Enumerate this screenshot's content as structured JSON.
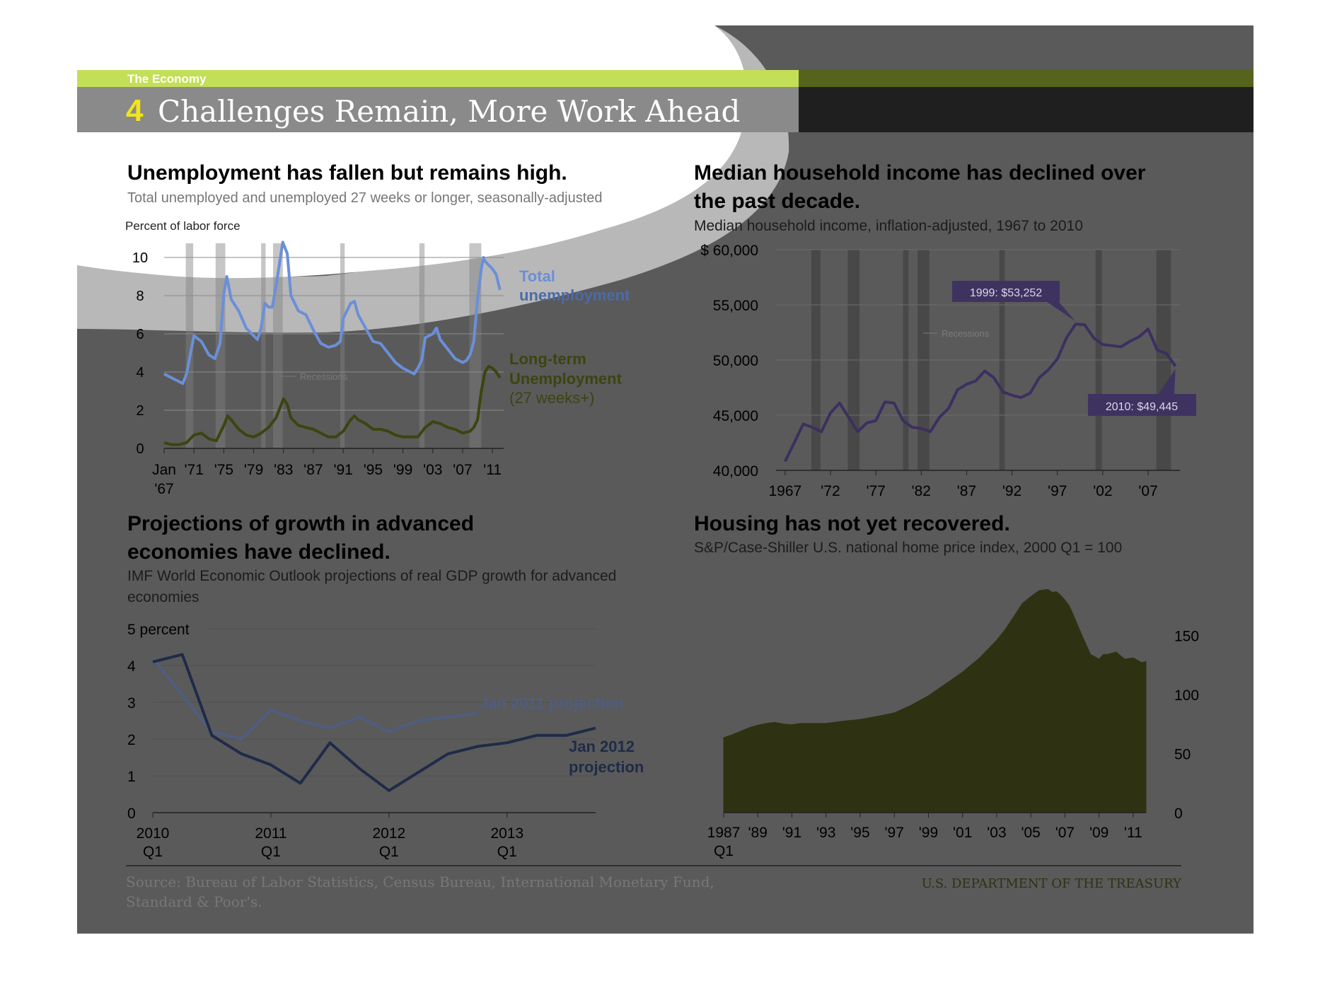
{
  "header": {
    "section_label": "The Economy",
    "number": "4",
    "title": "Challenges Remain, More Work Ahead"
  },
  "footer": {
    "source_line1": "Source: Bureau of Labor Statistics, Census Bureau, International Monetary Fund,",
    "source_line2": "Standard & Poor's.",
    "agency": "U.S. DEPARTMENT OF THE TREASURY"
  },
  "colors": {
    "green_band": "#c3df57",
    "dark_background": "#5a5a5a",
    "title_bar_dark": "#1f1f1f",
    "total_unemployment": "#6b8fd8",
    "long_term_unemployment": "#3b4510",
    "income_line": "#3c2f60",
    "callout_box": "#3e3360",
    "housing_fill": "#2e3213",
    "jan2011_line": "#4f5d80",
    "jan2012_line": "#1f2b48"
  },
  "chart_data": [
    {
      "id": "unemployment",
      "type": "line",
      "title": "Unemployment has fallen but remains high.",
      "subtitle": "Total unemployed and unemployed 27 weeks or longer, seasonally-adjusted",
      "ylabel": "Percent of labor force",
      "ylim": [
        0,
        10
      ],
      "yticks": [
        "0",
        "2",
        "4",
        "6",
        "8",
        "10"
      ],
      "xlim": [
        1967,
        2012.5
      ],
      "xticks": [
        {
          "x": 1967,
          "label": "Jan",
          "label2": "'67"
        },
        {
          "x": 1971,
          "label": "'71"
        },
        {
          "x": 1975,
          "label": "'75"
        },
        {
          "x": 1979,
          "label": "'79"
        },
        {
          "x": 1983,
          "label": "'83"
        },
        {
          "x": 1987,
          "label": "'87"
        },
        {
          "x": 1991,
          "label": "'91"
        },
        {
          "x": 1995,
          "label": "'95"
        },
        {
          "x": 1999,
          "label": "'99"
        },
        {
          "x": 2003,
          "label": "'03"
        },
        {
          "x": 2007,
          "label": "'07"
        },
        {
          "x": 2011,
          "label": "'11"
        }
      ],
      "recession_label": "Recessions",
      "recessions": [
        [
          1969.9,
          1970.9
        ],
        [
          1973.9,
          1975.2
        ],
        [
          1980.0,
          1980.6
        ],
        [
          1981.6,
          1982.9
        ],
        [
          1990.6,
          1991.2
        ],
        [
          2001.2,
          2001.9
        ],
        [
          2007.9,
          2009.5
        ]
      ],
      "grid": true,
      "series": [
        {
          "name": "Total unemployment",
          "label_lines": [
            "Total",
            "unemployment"
          ],
          "x": [
            1967.0,
            1968.0,
            1969.0,
            1969.5,
            1970.0,
            1970.5,
            1971.0,
            1972.0,
            1973.0,
            1973.8,
            1974.5,
            1975.0,
            1975.4,
            1976.0,
            1977.0,
            1978.0,
            1979.0,
            1979.5,
            1980.0,
            1980.5,
            1981.0,
            1981.5,
            1982.0,
            1982.9,
            1983.5,
            1984.0,
            1985.0,
            1986.0,
            1987.0,
            1988.0,
            1989.0,
            1990.0,
            1990.6,
            1991.0,
            1992.0,
            1992.5,
            1993.0,
            1994.0,
            1995.0,
            1996.0,
            1997.0,
            1998.0,
            1999.0,
            2000.0,
            2000.5,
            2001.0,
            2001.5,
            2002.0,
            2003.0,
            2003.5,
            2004.0,
            2005.0,
            2006.0,
            2007.0,
            2007.5,
            2008.0,
            2008.5,
            2009.0,
            2009.5,
            2009.8,
            2010.0,
            2010.5,
            2011.0,
            2011.5,
            2012.0
          ],
          "y": [
            3.9,
            3.7,
            3.5,
            3.4,
            3.9,
            4.9,
            5.9,
            5.6,
            4.9,
            4.7,
            5.5,
            8.1,
            9.0,
            7.8,
            7.2,
            6.3,
            5.9,
            5.7,
            6.3,
            7.6,
            7.4,
            7.4,
            8.5,
            10.8,
            10.2,
            8.0,
            7.2,
            7.0,
            6.2,
            5.5,
            5.3,
            5.4,
            5.6,
            6.8,
            7.6,
            7.7,
            7.0,
            6.3,
            5.6,
            5.5,
            5.0,
            4.5,
            4.2,
            4.0,
            3.9,
            4.2,
            4.6,
            5.8,
            6.0,
            6.3,
            5.7,
            5.2,
            4.7,
            4.5,
            4.6,
            4.9,
            5.6,
            7.8,
            9.4,
            10.0,
            9.8,
            9.6,
            9.4,
            9.1,
            8.3
          ]
        },
        {
          "name": "Long-term Unemployment",
          "label_lines": [
            "Long-term",
            "Unemployment",
            "(27 weeks+)"
          ],
          "x": [
            1967.0,
            1968.0,
            1969.0,
            1970.0,
            1971.0,
            1972.0,
            1973.0,
            1974.0,
            1975.0,
            1975.5,
            1976.0,
            1977.0,
            1978.0,
            1979.0,
            1980.0,
            1981.0,
            1982.0,
            1983.0,
            1983.5,
            1984.0,
            1985.0,
            1986.0,
            1987.0,
            1988.0,
            1989.0,
            1990.0,
            1991.0,
            1992.0,
            1992.5,
            1993.0,
            1994.0,
            1995.0,
            1996.0,
            1997.0,
            1998.0,
            1999.0,
            2000.0,
            2001.0,
            2002.0,
            2003.0,
            2004.0,
            2005.0,
            2006.0,
            2007.0,
            2008.0,
            2008.5,
            2009.0,
            2009.5,
            2010.0,
            2010.5,
            2011.0,
            2011.5,
            2012.0
          ],
          "y": [
            0.3,
            0.2,
            0.2,
            0.3,
            0.7,
            0.8,
            0.5,
            0.4,
            1.2,
            1.7,
            1.5,
            1.0,
            0.7,
            0.6,
            0.8,
            1.1,
            1.6,
            2.6,
            2.3,
            1.6,
            1.2,
            1.1,
            1.0,
            0.8,
            0.6,
            0.6,
            0.9,
            1.5,
            1.7,
            1.5,
            1.3,
            1.0,
            1.0,
            0.9,
            0.7,
            0.6,
            0.6,
            0.6,
            1.1,
            1.4,
            1.3,
            1.1,
            1.0,
            0.8,
            0.9,
            1.1,
            1.5,
            3.0,
            4.0,
            4.3,
            4.2,
            4.0,
            3.7
          ]
        }
      ]
    },
    {
      "id": "income",
      "type": "line",
      "title": "Median household income has declined over the past decade.",
      "title_lines": [
        "Median household income has declined over",
        "the past decade."
      ],
      "subtitle": "Median household income, inflation-adjusted, 1967 to 2010",
      "ylim": [
        40000,
        60000
      ],
      "yticks": [
        "40,000",
        "45,000",
        "50,000",
        "55,000",
        "$ 60,000"
      ],
      "xlim": [
        1966,
        2010.5
      ],
      "xticks": [
        {
          "x": 1967,
          "label": "1967"
        },
        {
          "x": 1972,
          "label": "'72"
        },
        {
          "x": 1977,
          "label": "'77"
        },
        {
          "x": 1982,
          "label": "'82"
        },
        {
          "x": 1987,
          "label": "'87"
        },
        {
          "x": 1992,
          "label": "'92"
        },
        {
          "x": 1997,
          "label": "'97"
        },
        {
          "x": 2002,
          "label": "'02"
        },
        {
          "x": 2007,
          "label": "'07"
        }
      ],
      "recession_label": "Recessions",
      "recessions": [
        [
          1969.9,
          1970.9
        ],
        [
          1973.9,
          1975.2
        ],
        [
          1980.0,
          1980.6
        ],
        [
          1981.6,
          1982.9
        ],
        [
          1990.6,
          1991.2
        ],
        [
          2001.2,
          2001.9
        ],
        [
          2007.9,
          2009.5
        ]
      ],
      "grid": true,
      "series": [
        {
          "name": "Median household income",
          "x": [
            1967,
            1968,
            1969,
            1970,
            1971,
            1972,
            1973,
            1974,
            1975,
            1976,
            1977,
            1978,
            1979,
            1980,
            1981,
            1982,
            1983,
            1984,
            1985,
            1986,
            1987,
            1988,
            1989,
            1990,
            1991,
            1992,
            1993,
            1994,
            1995,
            1996,
            1997,
            1998,
            1999,
            2000,
            2001,
            2002,
            2003,
            2004,
            2005,
            2006,
            2007,
            2008,
            2009,
            2010
          ],
          "y": [
            40800,
            42500,
            44200,
            43900,
            43500,
            45200,
            46100,
            44800,
            43500,
            44300,
            44500,
            46200,
            46100,
            44500,
            43900,
            43800,
            43500,
            44800,
            45600,
            47300,
            47800,
            48100,
            49000,
            48400,
            47100,
            46800,
            46600,
            47000,
            48400,
            49100,
            50100,
            52000,
            53252,
            53200,
            52000,
            51400,
            51300,
            51200,
            51700,
            52100,
            52800,
            50900,
            50600,
            49445
          ]
        }
      ],
      "annotations": [
        {
          "text": "1999: $53,252",
          "x": 1999,
          "y": 53252
        },
        {
          "text": "2010: $49,445",
          "x": 2010,
          "y": 49445
        }
      ]
    },
    {
      "id": "gdp_projections",
      "type": "line",
      "title": "Projections of growth in advanced economies have declined.",
      "title_lines": [
        "Projections of growth in advanced",
        "economies have declined."
      ],
      "subtitle": "IMF World Economic Outlook  projections of real GDP growth for advanced economies",
      "subtitle_lines": [
        "IMF World Economic Outlook  projections of real GDP growth for advanced",
        "economies"
      ],
      "ylim": [
        0,
        5
      ],
      "yticks": [
        "0",
        "1",
        "2",
        "3",
        "4",
        "5 percent"
      ],
      "xlim": [
        0,
        15
      ],
      "xticks": [
        {
          "x": 0,
          "label": "2010",
          "label2": "Q1"
        },
        {
          "x": 4,
          "label": "2011",
          "label2": "Q1"
        },
        {
          "x": 8,
          "label": "2012",
          "label2": "Q1"
        },
        {
          "x": 12,
          "label": "2013",
          "label2": "Q1"
        }
      ],
      "grid": true,
      "series": [
        {
          "name": "Jan 2011 projection",
          "label_lines": [
            "Jan 2011 projection"
          ],
          "x": [
            0,
            1,
            2,
            3,
            4,
            5,
            6,
            7,
            8,
            9,
            10,
            11
          ],
          "y": [
            4.2,
            3.2,
            2.2,
            2.0,
            2.8,
            2.5,
            2.3,
            2.6,
            2.2,
            2.5,
            2.6,
            2.7
          ]
        },
        {
          "name": "Jan 2012 projection",
          "label_lines": [
            "Jan 2012",
            "projection"
          ],
          "x": [
            0,
            1,
            2,
            3,
            4,
            5,
            6,
            7,
            8,
            9,
            10,
            11,
            12,
            13,
            14,
            15
          ],
          "y": [
            4.1,
            4.3,
            2.1,
            1.6,
            1.3,
            0.8,
            1.9,
            1.2,
            0.6,
            1.1,
            1.6,
            1.8,
            1.9,
            2.1,
            2.1,
            2.3
          ]
        }
      ]
    },
    {
      "id": "housing",
      "type": "area",
      "title": "Housing has not yet recovered.",
      "subtitle": "S&P/Case-Shiller U.S. national home price index, 2000 Q1 = 100",
      "ylim": [
        0,
        200
      ],
      "yticks": [
        "0",
        "50",
        "100",
        "150"
      ],
      "xlim": [
        1987,
        2011.75
      ],
      "xticks": [
        {
          "x": 1987,
          "label": "1987",
          "label2": "Q1"
        },
        {
          "x": 1989,
          "label": "'89"
        },
        {
          "x": 1991,
          "label": "'91"
        },
        {
          "x": 1993,
          "label": "'93"
        },
        {
          "x": 1995,
          "label": "'95"
        },
        {
          "x": 1997,
          "label": "'97"
        },
        {
          "x": 1999,
          "label": "'99"
        },
        {
          "x": 2001,
          "label": "'01"
        },
        {
          "x": 2003,
          "label": "'03"
        },
        {
          "x": 2005,
          "label": "'05"
        },
        {
          "x": 2007,
          "label": "'07"
        },
        {
          "x": 2009,
          "label": "'09"
        },
        {
          "x": 2011,
          "label": "'11"
        }
      ],
      "y_axis_side": "right",
      "series": [
        {
          "name": "S&P/Case-Shiller U.S. national home price index",
          "x": [
            1987.0,
            1987.5,
            1988.0,
            1988.5,
            1989.0,
            1989.5,
            1990.0,
            1990.5,
            1991.0,
            1991.5,
            1992.0,
            1993.0,
            1994.0,
            1995.0,
            1996.0,
            1997.0,
            1998.0,
            1999.0,
            2000.0,
            2001.0,
            2002.0,
            2003.0,
            2003.5,
            2004.0,
            2004.5,
            2005.0,
            2005.5,
            2006.0,
            2006.25,
            2006.5,
            2006.75,
            2007.0,
            2007.25,
            2007.5,
            2008.0,
            2008.5,
            2009.0,
            2009.25,
            2009.5,
            2010.0,
            2010.25,
            2010.5,
            2011.0,
            2011.5,
            2011.75
          ],
          "y": [
            63.5,
            66.0,
            69.0,
            72.0,
            74.0,
            75.5,
            76.5,
            75.0,
            74.5,
            75.5,
            75.5,
            75.5,
            77.5,
            79.0,
            81.5,
            84.5,
            91.0,
            99.0,
            109.0,
            119.0,
            131.0,
            146.0,
            155.0,
            166.0,
            177.0,
            183.0,
            188.0,
            189.0,
            186.5,
            187.0,
            184.0,
            180.0,
            175.0,
            167.0,
            150.0,
            134.0,
            130.0,
            134.0,
            134.0,
            136.0,
            133.0,
            130.0,
            131.0,
            127.0,
            128.0
          ]
        }
      ]
    }
  ]
}
